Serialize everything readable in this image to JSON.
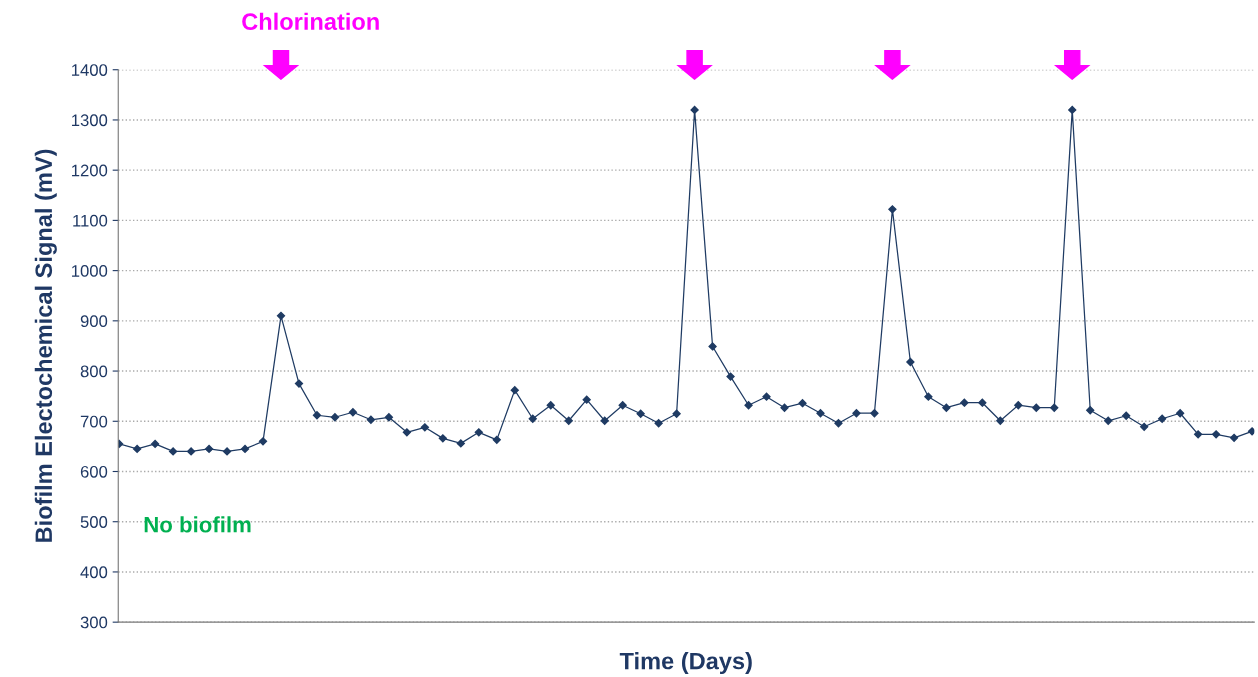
{
  "chart_data": {
    "type": "line",
    "xlabel": "Time (Days)",
    "ylabel": "Biofilm Electochemical Signal (mV)",
    "categories": [
      null,
      null,
      null,
      null,
      null,
      null,
      null,
      null,
      null,
      null,
      null,
      null,
      null,
      null,
      null,
      null,
      null,
      null,
      null,
      null,
      null,
      null,
      null,
      null,
      null,
      null,
      null,
      null,
      null,
      null,
      null,
      null,
      null,
      null,
      null,
      null,
      null,
      null,
      null,
      null,
      null,
      null,
      null,
      null,
      null,
      null,
      null,
      null,
      null,
      null,
      null,
      null,
      null,
      null,
      null,
      null,
      null,
      null,
      null,
      null,
      null,
      null,
      null,
      null
    ],
    "series": [
      {
        "color": "#1f3b63",
        "values": [
          655,
          645,
          655,
          640,
          640,
          645,
          640,
          645,
          660,
          910,
          775,
          712,
          708,
          718,
          703,
          708,
          678,
          688,
          666,
          656,
          678,
          663,
          762,
          705,
          732,
          701,
          743,
          701,
          732,
          715,
          696,
          715,
          1320,
          849,
          789,
          732,
          749,
          727,
          736,
          716,
          696,
          716,
          716,
          1122,
          818,
          749,
          727,
          737,
          737,
          701,
          732,
          727,
          727,
          1320,
          722,
          701,
          711,
          689,
          705,
          716,
          674,
          674,
          667,
          680
        ]
      }
    ],
    "ylim": [
      300,
      1400
    ],
    "yticks": [
      300,
      400,
      500,
      600,
      700,
      800,
      900,
      1000,
      1100,
      1200,
      1300,
      1400
    ],
    "grid": "y",
    "marker": "diamond",
    "line_style": "solid",
    "annotations": [
      "Chlorination",
      "No biofilm"
    ]
  }
}
